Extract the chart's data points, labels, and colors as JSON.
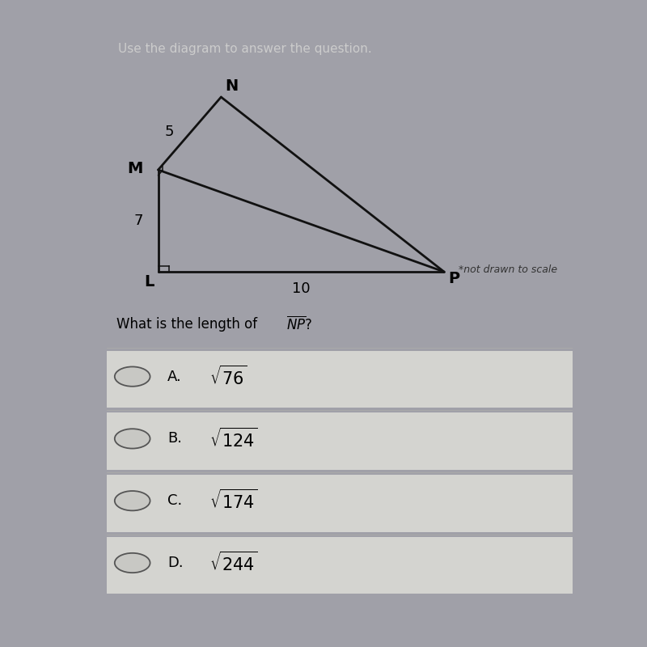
{
  "header_text": "Use the diagram to answer the question.",
  "header_bg": "#1a1a1a",
  "header_text_color": "#cccccc",
  "outer_bg": "#a0a0a8",
  "inner_bg": "#c8c8c4",
  "separator_color": "#5588aa",
  "points": {
    "L": [
      0.0,
      0.0
    ],
    "M": [
      0.0,
      7.0
    ],
    "N": [
      2.2,
      12.0
    ],
    "P": [
      10.0,
      0.0
    ]
  },
  "not_to_scale": "*not drawn to scale",
  "choices": [
    {
      "letter": "A.",
      "value": "76"
    },
    {
      "letter": "B.",
      "value": "124"
    },
    {
      "letter": "C.",
      "value": "174"
    },
    {
      "letter": "D.",
      "value": "244"
    }
  ],
  "line_color": "#111111",
  "line_width": 2.0,
  "label_fontsize": 12,
  "choice_fontsize": 13,
  "question_fontsize": 12
}
